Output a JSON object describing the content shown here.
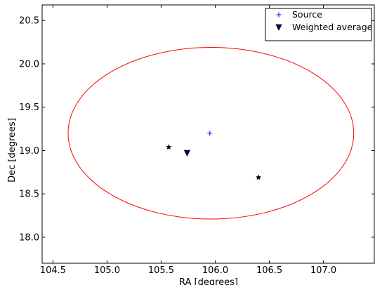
{
  "chart_data": {
    "type": "scatter",
    "xlabel": "RA [degrees]",
    "ylabel": "Dec [degrees]",
    "xlim": [
      104.4,
      107.47
    ],
    "ylim": [
      17.7,
      20.68
    ],
    "xticks": [
      "104.5",
      "105.0",
      "105.5",
      "106.0",
      "106.5",
      "107.0"
    ],
    "yticks": [
      "18.0",
      "18.5",
      "19.0",
      "19.5",
      "20.0",
      "20.5"
    ],
    "grid": false,
    "legend_position": "top-right",
    "series": [
      {
        "name": "Source",
        "marker": "plus",
        "color": "#0000ff",
        "points": [
          {
            "x": 105.95,
            "y": 19.2
          }
        ]
      },
      {
        "name": "Weighted average",
        "marker": "triangle-down",
        "color": "#00008b",
        "points": [
          {
            "x": 105.74,
            "y": 18.97
          }
        ]
      },
      {
        "marker": "star",
        "color": "#000000",
        "points": [
          {
            "x": 105.57,
            "y": 19.04
          },
          {
            "x": 106.4,
            "y": 18.69
          }
        ]
      }
    ],
    "shapes": [
      {
        "type": "ellipse",
        "color": "#ff0000",
        "center": {
          "x": 105.96,
          "y": 19.2
        },
        "half_width": 1.32,
        "half_height": 0.99
      }
    ]
  }
}
